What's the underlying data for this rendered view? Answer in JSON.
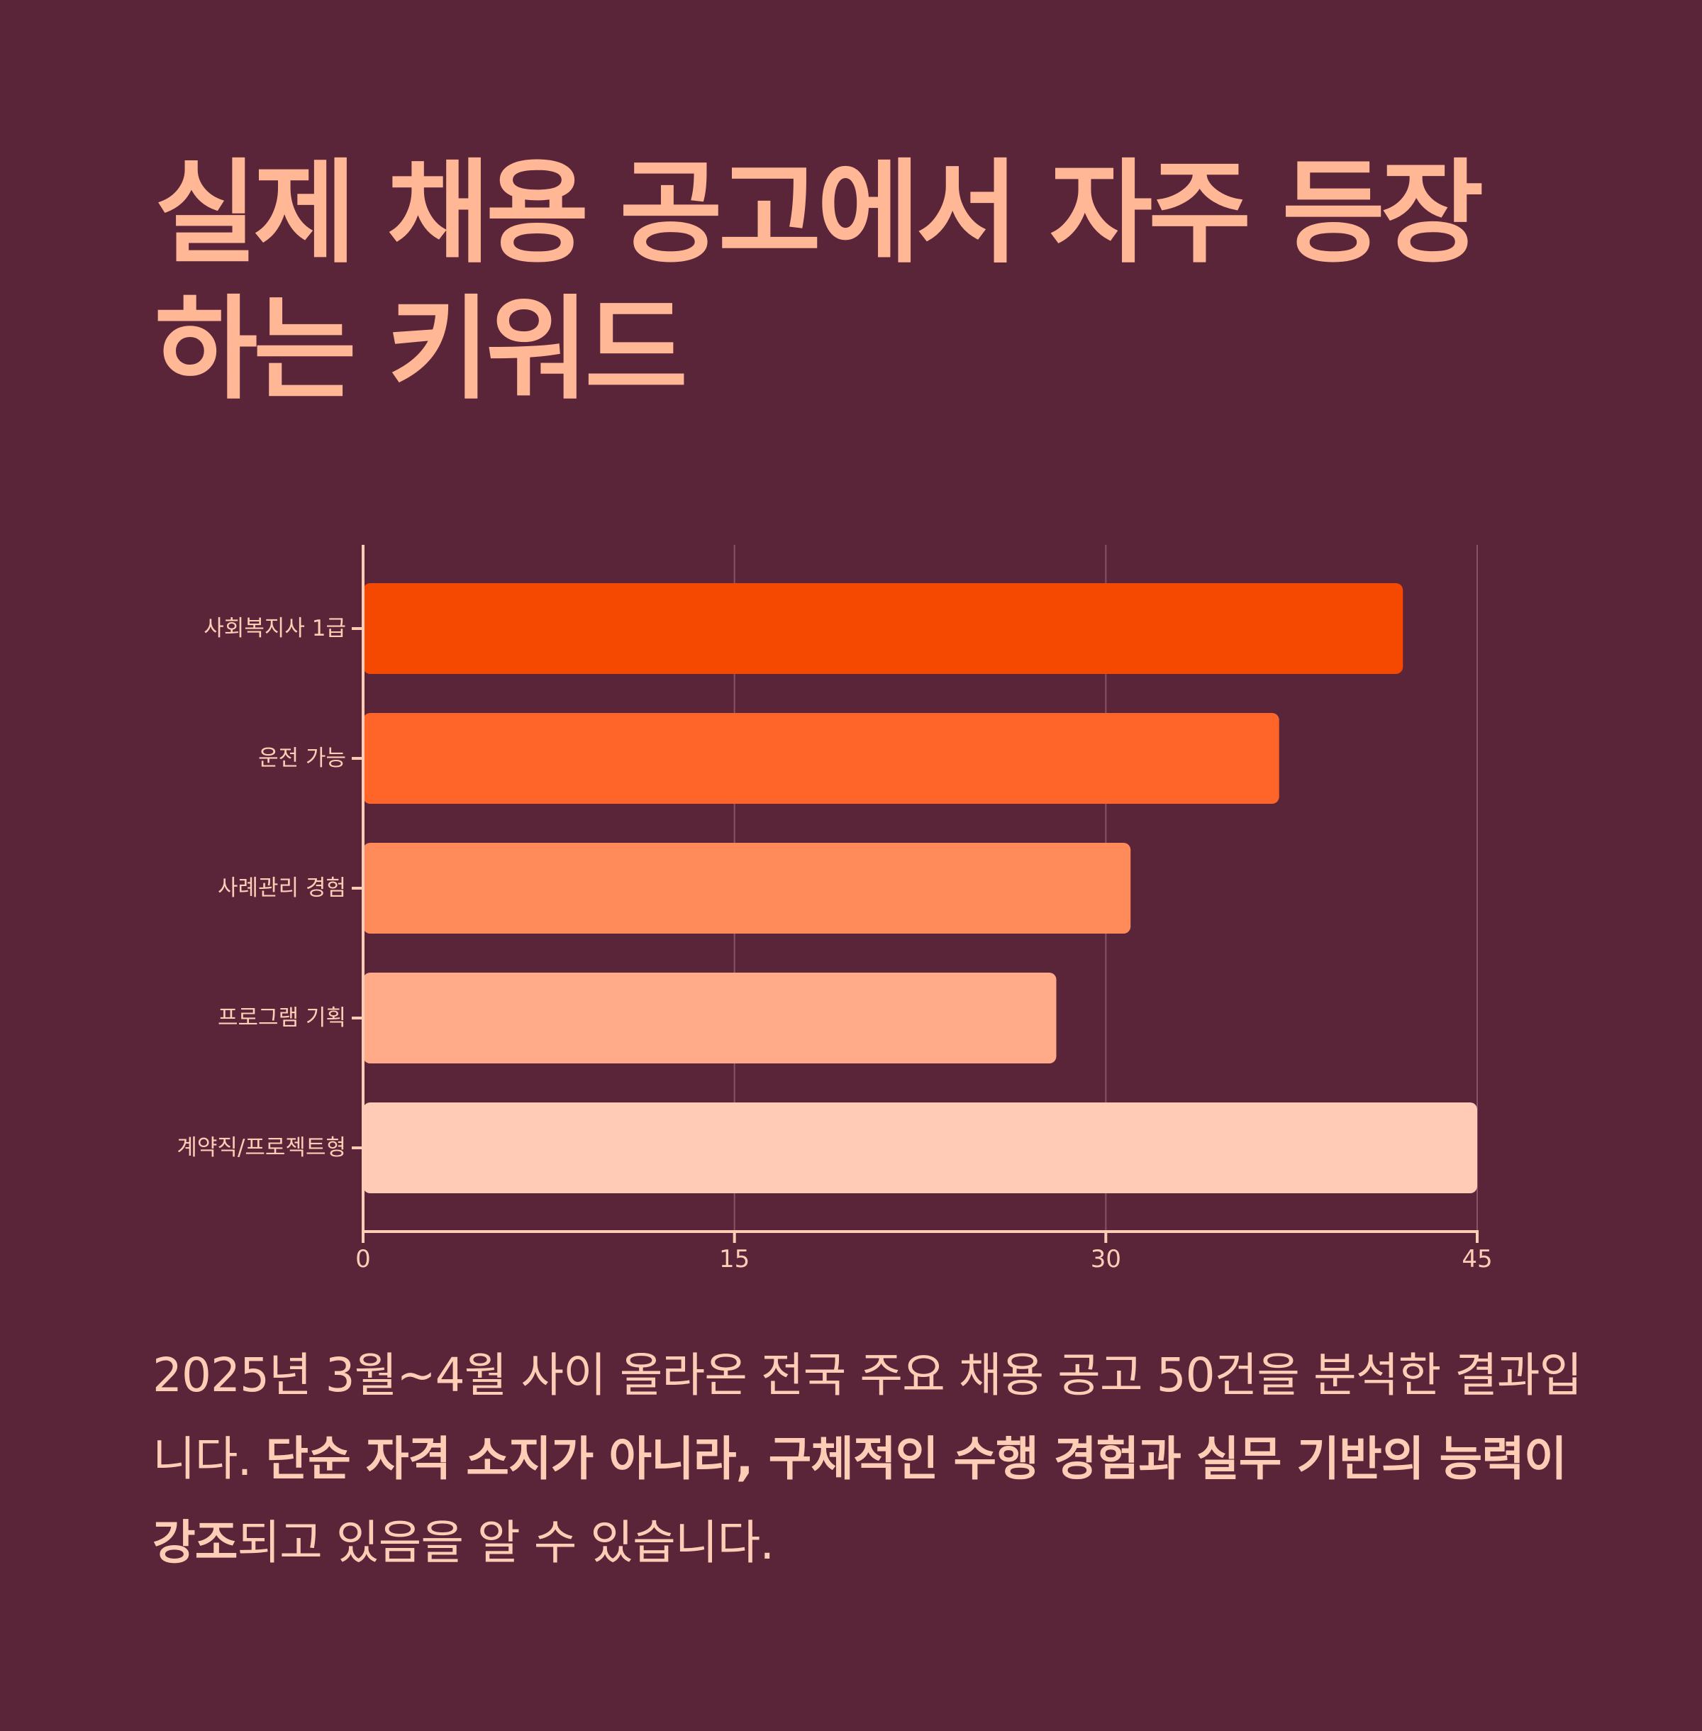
{
  "title": "실제 채용 공고에서 자주 등장하는 키워드",
  "caption": {
    "lead": "2025년 3월~4월 사이 올라온 전국 주요 채용 공고 50건을 분석한 결과입니다. ",
    "emphasis": "단순 자격 소지가 아니라, 구체적인 수행 경험과 실무 기반의 능력이 강조",
    "tail": "되고 있음을 알 수 있습니다."
  },
  "chart_data": {
    "type": "bar",
    "orientation": "horizontal",
    "categories": [
      "사회복지사 1급",
      "운전 가능",
      "사례관리 경험",
      "프로그램 기획",
      "계약직/프로젝트형"
    ],
    "values": [
      42,
      37,
      31,
      28,
      45
    ],
    "colors": [
      "#f54800",
      "#ff6428",
      "#ff8a5a",
      "#ffab8a",
      "#ffcbb6"
    ],
    "xlim": [
      0,
      45
    ],
    "xticks": [
      0,
      15,
      30,
      45
    ],
    "grid": true,
    "axis_color": "#ffcdb6",
    "grid_color": "#8a5266"
  }
}
